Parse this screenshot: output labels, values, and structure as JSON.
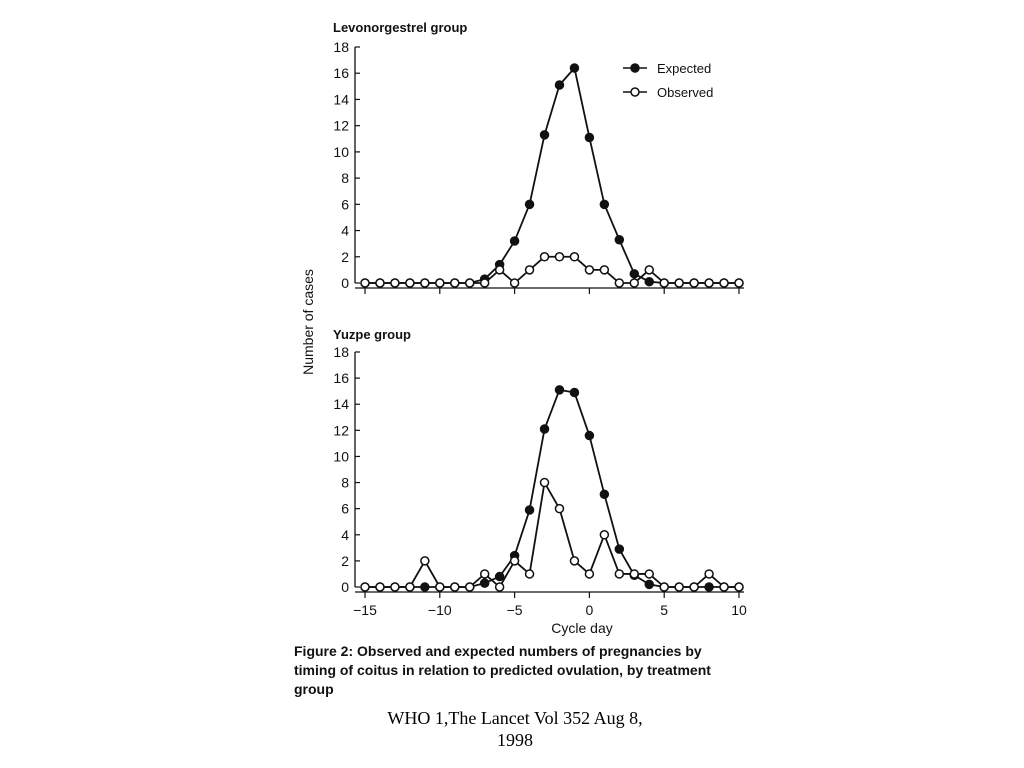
{
  "chart_data": [
    {
      "type": "line",
      "title": "Levonorgestrel group",
      "xlabel": "",
      "ylabel": "Number of cases",
      "xlim": [
        -15,
        10
      ],
      "ylim": [
        0,
        18
      ],
      "x_ticks": [
        -15,
        -10,
        -5,
        0,
        5,
        10
      ],
      "y_ticks": [
        0,
        2,
        4,
        6,
        8,
        10,
        12,
        14,
        16,
        18
      ],
      "y_tick_labels": [
        "0",
        "2",
        "4",
        "6",
        "8",
        "10",
        "12",
        "14",
        "16",
        "18"
      ],
      "legend": "top-right",
      "grid": false,
      "x": [
        -15,
        -14,
        -13,
        -12,
        -11,
        -10,
        -9,
        -8,
        -7,
        -6,
        -5,
        -4,
        -3,
        -2,
        -1,
        0,
        1,
        2,
        3,
        4,
        5,
        6,
        7,
        8,
        9,
        10
      ],
      "series": [
        {
          "name": "Expected",
          "marker": "filled",
          "values": [
            0,
            0,
            0,
            0,
            0,
            0,
            0,
            0,
            0.3,
            1.4,
            3.2,
            6,
            11.3,
            15.1,
            16.4,
            11.1,
            6,
            3.3,
            0.7,
            0.1,
            0,
            0,
            0,
            0,
            0,
            0
          ]
        },
        {
          "name": "Observed",
          "marker": "open",
          "values": [
            0,
            0,
            0,
            0,
            0,
            0,
            0,
            0,
            0,
            1,
            0,
            1,
            2,
            2,
            2,
            1,
            1,
            0,
            0,
            1,
            0,
            0,
            0,
            0,
            0,
            0
          ]
        }
      ]
    },
    {
      "type": "line",
      "title": "Yuzpe group",
      "xlabel": "Cycle day",
      "ylabel": "",
      "xlim": [
        -15,
        10
      ],
      "ylim": [
        0,
        18
      ],
      "x_ticks": [
        -15,
        -10,
        -5,
        0,
        5,
        10
      ],
      "x_tick_labels": [
        "−15",
        "−10",
        "−5",
        "0",
        "5",
        "10"
      ],
      "y_ticks": [
        0,
        2,
        4,
        6,
        8,
        10,
        12,
        14,
        16,
        18
      ],
      "y_tick_labels": [
        "0",
        "2",
        "4",
        "6",
        "8",
        "10",
        "12",
        "14",
        "16",
        "18"
      ],
      "grid": false,
      "x": [
        -15,
        -14,
        -13,
        -12,
        -11,
        -10,
        -9,
        -8,
        -7,
        -6,
        -5,
        -4,
        -3,
        -2,
        -1,
        0,
        1,
        2,
        3,
        4,
        5,
        6,
        7,
        8,
        9,
        10
      ],
      "series": [
        {
          "name": "Expected",
          "marker": "filled",
          "values": [
            0,
            0,
            0,
            0,
            0,
            0,
            0,
            0,
            0.3,
            0.8,
            2.4,
            5.9,
            12.1,
            15.1,
            14.9,
            11.6,
            7.1,
            2.9,
            0.9,
            0.2,
            0,
            0,
            0,
            0,
            0,
            0
          ]
        },
        {
          "name": "Observed",
          "marker": "open",
          "values": [
            0,
            0,
            0,
            0,
            2,
            0,
            0,
            0,
            1,
            0,
            2,
            1,
            8,
            6,
            2,
            1,
            4,
            1,
            1,
            1,
            0,
            0,
            0,
            1,
            0,
            0
          ]
        }
      ]
    }
  ],
  "caption": {
    "lead": "Figure 2:",
    "text": "Observed and expected numbers of pregnancies by timing of coitus in relation to predicted ovulation, by treatment group"
  },
  "source_line1": "WHO 1,The Lancet Vol 352 Aug 8,",
  "source_line2": "1998",
  "colors": {
    "line": "#111111",
    "background": "#ffffff"
  }
}
